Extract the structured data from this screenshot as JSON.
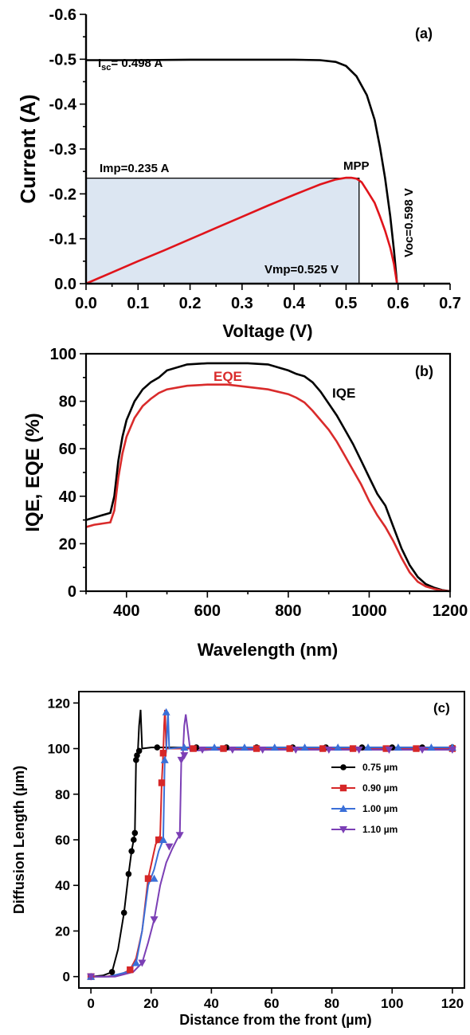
{
  "chart_data": [
    {
      "type": "line",
      "panel_label": "(a)",
      "xlabel": "Voltage (V)",
      "ylabel": "Current (A)",
      "xlim": [
        0.0,
        0.7
      ],
      "ylim": [
        0.0,
        -0.6
      ],
      "x_ticks": [
        "0.0",
        "0.1",
        "0.2",
        "0.3",
        "0.4",
        "0.5",
        "0.6",
        "0.7"
      ],
      "y_ticks": [
        "0.0",
        "-0.1",
        "-0.2",
        "-0.3",
        "-0.4",
        "-0.5",
        "-0.6"
      ],
      "series": [
        {
          "color": "#000000",
          "x": [
            0.0,
            0.1,
            0.2,
            0.3,
            0.4,
            0.45,
            0.48,
            0.5,
            0.52,
            0.54,
            0.555,
            0.565,
            0.575,
            0.585,
            0.592,
            0.598
          ],
          "y": [
            -0.498,
            -0.498,
            -0.499,
            -0.499,
            -0.499,
            -0.498,
            -0.494,
            -0.485,
            -0.462,
            -0.42,
            -0.365,
            -0.305,
            -0.235,
            -0.15,
            -0.075,
            0.0
          ]
        },
        {
          "color": "#e0141b",
          "x": [
            0.0,
            0.05,
            0.1,
            0.15,
            0.2,
            0.25,
            0.3,
            0.35,
            0.4,
            0.45,
            0.48,
            0.5,
            0.51,
            0.52,
            0.53,
            0.54,
            0.555,
            0.565,
            0.575,
            0.585,
            0.592,
            0.598
          ],
          "y": [
            0.0,
            -0.025,
            -0.05,
            -0.074,
            -0.099,
            -0.124,
            -0.149,
            -0.174,
            -0.198,
            -0.221,
            -0.232,
            -0.236,
            -0.236,
            -0.234,
            -0.226,
            -0.208,
            -0.18,
            -0.15,
            -0.118,
            -0.08,
            -0.044,
            0.0
          ]
        }
      ],
      "mpp_box": {
        "vmp": 0.525,
        "imp": -0.235,
        "fill": "#dce6f2"
      },
      "annotations": {
        "isc_prefix": "I",
        "isc_sub": "sc",
        "isc_value": "= 0.498 A",
        "imp": "Imp=0.235 A",
        "mpp": "MPP",
        "vmp": "Vmp=0.525 V",
        "voc": "Voc=0.598 V"
      }
    },
    {
      "type": "line",
      "panel_label": "(b)",
      "xlabel": "Wavelength (nm)",
      "ylabel": "IQE, EQE (%)",
      "xlim": [
        300,
        1200
      ],
      "ylim": [
        0,
        100
      ],
      "x_ticks": [
        "400",
        "600",
        "800",
        "1000",
        "1200"
      ],
      "y_ticks": [
        "0",
        "20",
        "40",
        "60",
        "80",
        "100"
      ],
      "series": [
        {
          "name": "IQE",
          "color": "#000000",
          "x": [
            300,
            320,
            340,
            360,
            370,
            380,
            390,
            400,
            420,
            440,
            460,
            480,
            500,
            550,
            600,
            650,
            700,
            750,
            800,
            820,
            840,
            860,
            880,
            900,
            920,
            940,
            960,
            980,
            1000,
            1020,
            1040,
            1060,
            1080,
            1100,
            1120,
            1140,
            1160,
            1180,
            1200
          ],
          "y": [
            30,
            31,
            32,
            33,
            40,
            55,
            65,
            72,
            80,
            85,
            88,
            90,
            93,
            95.5,
            96,
            96,
            96,
            95.5,
            93,
            91.5,
            90.5,
            88,
            84,
            79,
            74,
            68,
            62,
            55,
            48,
            41,
            36,
            27,
            18,
            11,
            6,
            3,
            1.5,
            0.5,
            0
          ]
        },
        {
          "name": "EQE",
          "color": "#d92b2b",
          "x": [
            300,
            320,
            340,
            360,
            370,
            380,
            390,
            400,
            420,
            440,
            460,
            480,
            500,
            550,
            600,
            650,
            700,
            750,
            800,
            820,
            840,
            860,
            880,
            900,
            920,
            940,
            960,
            980,
            1000,
            1020,
            1040,
            1060,
            1080,
            1100,
            1120,
            1140,
            1160,
            1180,
            1200
          ],
          "y": [
            27,
            28,
            28.5,
            29,
            34,
            48,
            58,
            65,
            73,
            78,
            81,
            83.5,
            85,
            86.5,
            87,
            87,
            86,
            85,
            83,
            81.5,
            79.5,
            76,
            72,
            68,
            63,
            57,
            51,
            45,
            38,
            32,
            27,
            21,
            14,
            8,
            4,
            2,
            1,
            0.3,
            0
          ]
        }
      ],
      "labels": {
        "eqe": "EQE",
        "iqe": "IQE"
      }
    },
    {
      "type": "line",
      "panel_label": "(c)",
      "xlabel": "Distance from the front (µm)",
      "ylabel": "Diffusion Length (µm)",
      "xlim": [
        -4,
        124
      ],
      "ylim": [
        -5,
        125
      ],
      "x_ticks": [
        "0",
        "20",
        "40",
        "60",
        "80",
        "100",
        "120"
      ],
      "y_ticks": [
        "0",
        "20",
        "40",
        "60",
        "80",
        "100",
        "120"
      ],
      "series": [
        {
          "name": "0.75 µm",
          "color": "#000000",
          "marker": "circle",
          "x": [
            0,
            4,
            7,
            9,
            11,
            12.5,
            13.5,
            14.2,
            14.6,
            15,
            15.3,
            15.6,
            16,
            16.5,
            17,
            20,
            30,
            40,
            50,
            60,
            70,
            80,
            90,
            100,
            110,
            120
          ],
          "y": [
            0,
            0.5,
            2,
            12,
            28,
            45,
            55,
            60,
            63,
            95,
            97,
            99,
            110,
            117,
            100,
            100.5,
            100.5,
            100.5,
            100.5,
            100.5,
            100.5,
            100.5,
            100.5,
            100.5,
            100.5,
            100.5
          ],
          "markers_x": [
            0,
            7,
            11,
            12.5,
            13.5,
            14.2,
            14.6,
            15,
            15.3,
            16,
            22,
            35,
            45,
            55,
            67,
            78,
            90,
            100,
            110,
            120
          ],
          "markers_y": [
            0,
            2,
            28,
            45,
            55,
            60,
            63,
            95,
            97,
            99,
            100.5,
            100.5,
            100.5,
            100.5,
            100.5,
            100.5,
            100.5,
            100.5,
            100.5,
            100.5
          ]
        },
        {
          "name": "0.90 µm",
          "color": "#d62728",
          "marker": "square",
          "x": [
            0,
            5,
            10,
            13,
            15,
            17,
            19,
            20.5,
            21.5,
            22.5,
            23,
            23.5,
            24,
            24.3,
            24.6,
            25,
            28,
            40,
            60,
            80,
            100,
            120
          ],
          "y": [
            0,
            0,
            1,
            3,
            8,
            20,
            43,
            52,
            58,
            60,
            62,
            85,
            98,
            110,
            117,
            100,
            100,
            100,
            100,
            100,
            100,
            100
          ],
          "markers_x": [
            0,
            13,
            19,
            22.5,
            23.5,
            24,
            34,
            44,
            55,
            66,
            77,
            87,
            98,
            108,
            120
          ],
          "markers_y": [
            0,
            3,
            43,
            60,
            85,
            98,
            100,
            100,
            100,
            100,
            100,
            100,
            100,
            100,
            100
          ]
        },
        {
          "name": "1.00 µm",
          "color": "#3a6fd8",
          "marker": "triangle",
          "x": [
            0,
            6,
            12,
            15,
            17,
            19,
            21,
            22.5,
            24,
            24.5,
            25,
            25.3,
            25.6,
            26,
            30,
            40,
            60,
            80,
            100,
            120
          ],
          "y": [
            0,
            0,
            2,
            6,
            20,
            40,
            47,
            55,
            60,
            95,
            99,
            108,
            116,
            100,
            100.5,
            100.5,
            100.5,
            100.5,
            100.5,
            100.5
          ],
          "markers_x": [
            0,
            15,
            21,
            24,
            24.5,
            25,
            31,
            41,
            51,
            61,
            71,
            82,
            92,
            102,
            113,
            120
          ],
          "markers_y": [
            0,
            6,
            43,
            60,
            95,
            116,
            100.5,
            100.5,
            100.5,
            100.5,
            100.5,
            100.5,
            100.5,
            100.5,
            100.5,
            100.5
          ]
        },
        {
          "name": "1.10 µm",
          "color": "#7b3fb5",
          "marker": "triangle-down",
          "x": [
            0,
            8,
            14,
            17,
            19,
            21,
            23,
            25,
            27,
            28.5,
            29.5,
            30,
            30.5,
            31,
            31.5,
            33,
            40,
            60,
            80,
            100,
            120
          ],
          "y": [
            0,
            0,
            2,
            6,
            15,
            25,
            40,
            50,
            56,
            60,
            62,
            95,
            97,
            110,
            115,
            99,
            99.5,
            99.5,
            99.5,
            99.5,
            99.5
          ],
          "markers_x": [
            0,
            17,
            21,
            26,
            29.5,
            30,
            31,
            37,
            47,
            57,
            68,
            79,
            89,
            99,
            110,
            120
          ],
          "markers_y": [
            0,
            6,
            25,
            57,
            62,
            95,
            97,
            99.5,
            99.5,
            99.5,
            99.5,
            99.5,
            99.5,
            99.5,
            99.5,
            99.5
          ]
        }
      ]
    }
  ]
}
